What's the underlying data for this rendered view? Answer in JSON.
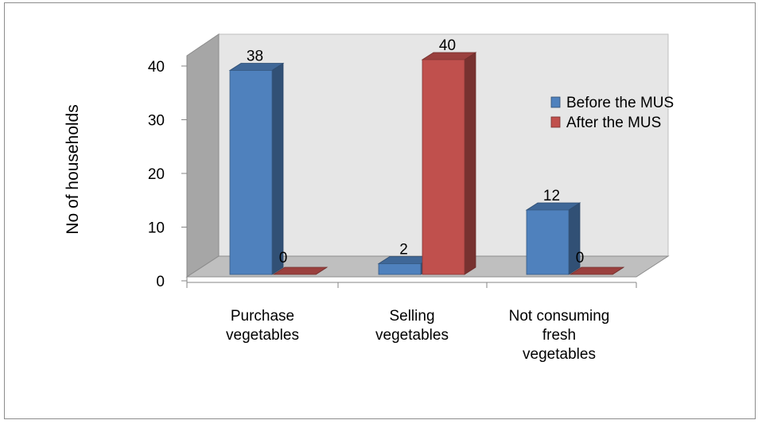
{
  "chart_data": {
    "type": "bar",
    "style": "3d-clustered-column",
    "title": "",
    "xlabel": "",
    "ylabel": "No of households",
    "ylim": [
      0,
      40
    ],
    "yticks": [
      "0",
      "10",
      "20",
      "30",
      "40"
    ],
    "ytick_values": [
      0,
      10,
      20,
      30,
      40
    ],
    "categories": [
      [
        "Purchase",
        "vegetables"
      ],
      [
        "Selling",
        "vegetables"
      ],
      [
        "Not consuming",
        "fresh",
        "vegetables"
      ]
    ],
    "series": [
      {
        "name": "Before the MUS",
        "values": [
          38,
          2,
          12
        ],
        "color": "#4F81BD"
      },
      {
        "name": "After the MUS",
        "values": [
          0,
          40,
          0
        ],
        "color": "#C0504D"
      }
    ],
    "data_labels": [
      [
        "38",
        "2",
        "12"
      ],
      [
        "0",
        "40",
        "0"
      ]
    ],
    "legend_position": "right",
    "grid": false
  }
}
